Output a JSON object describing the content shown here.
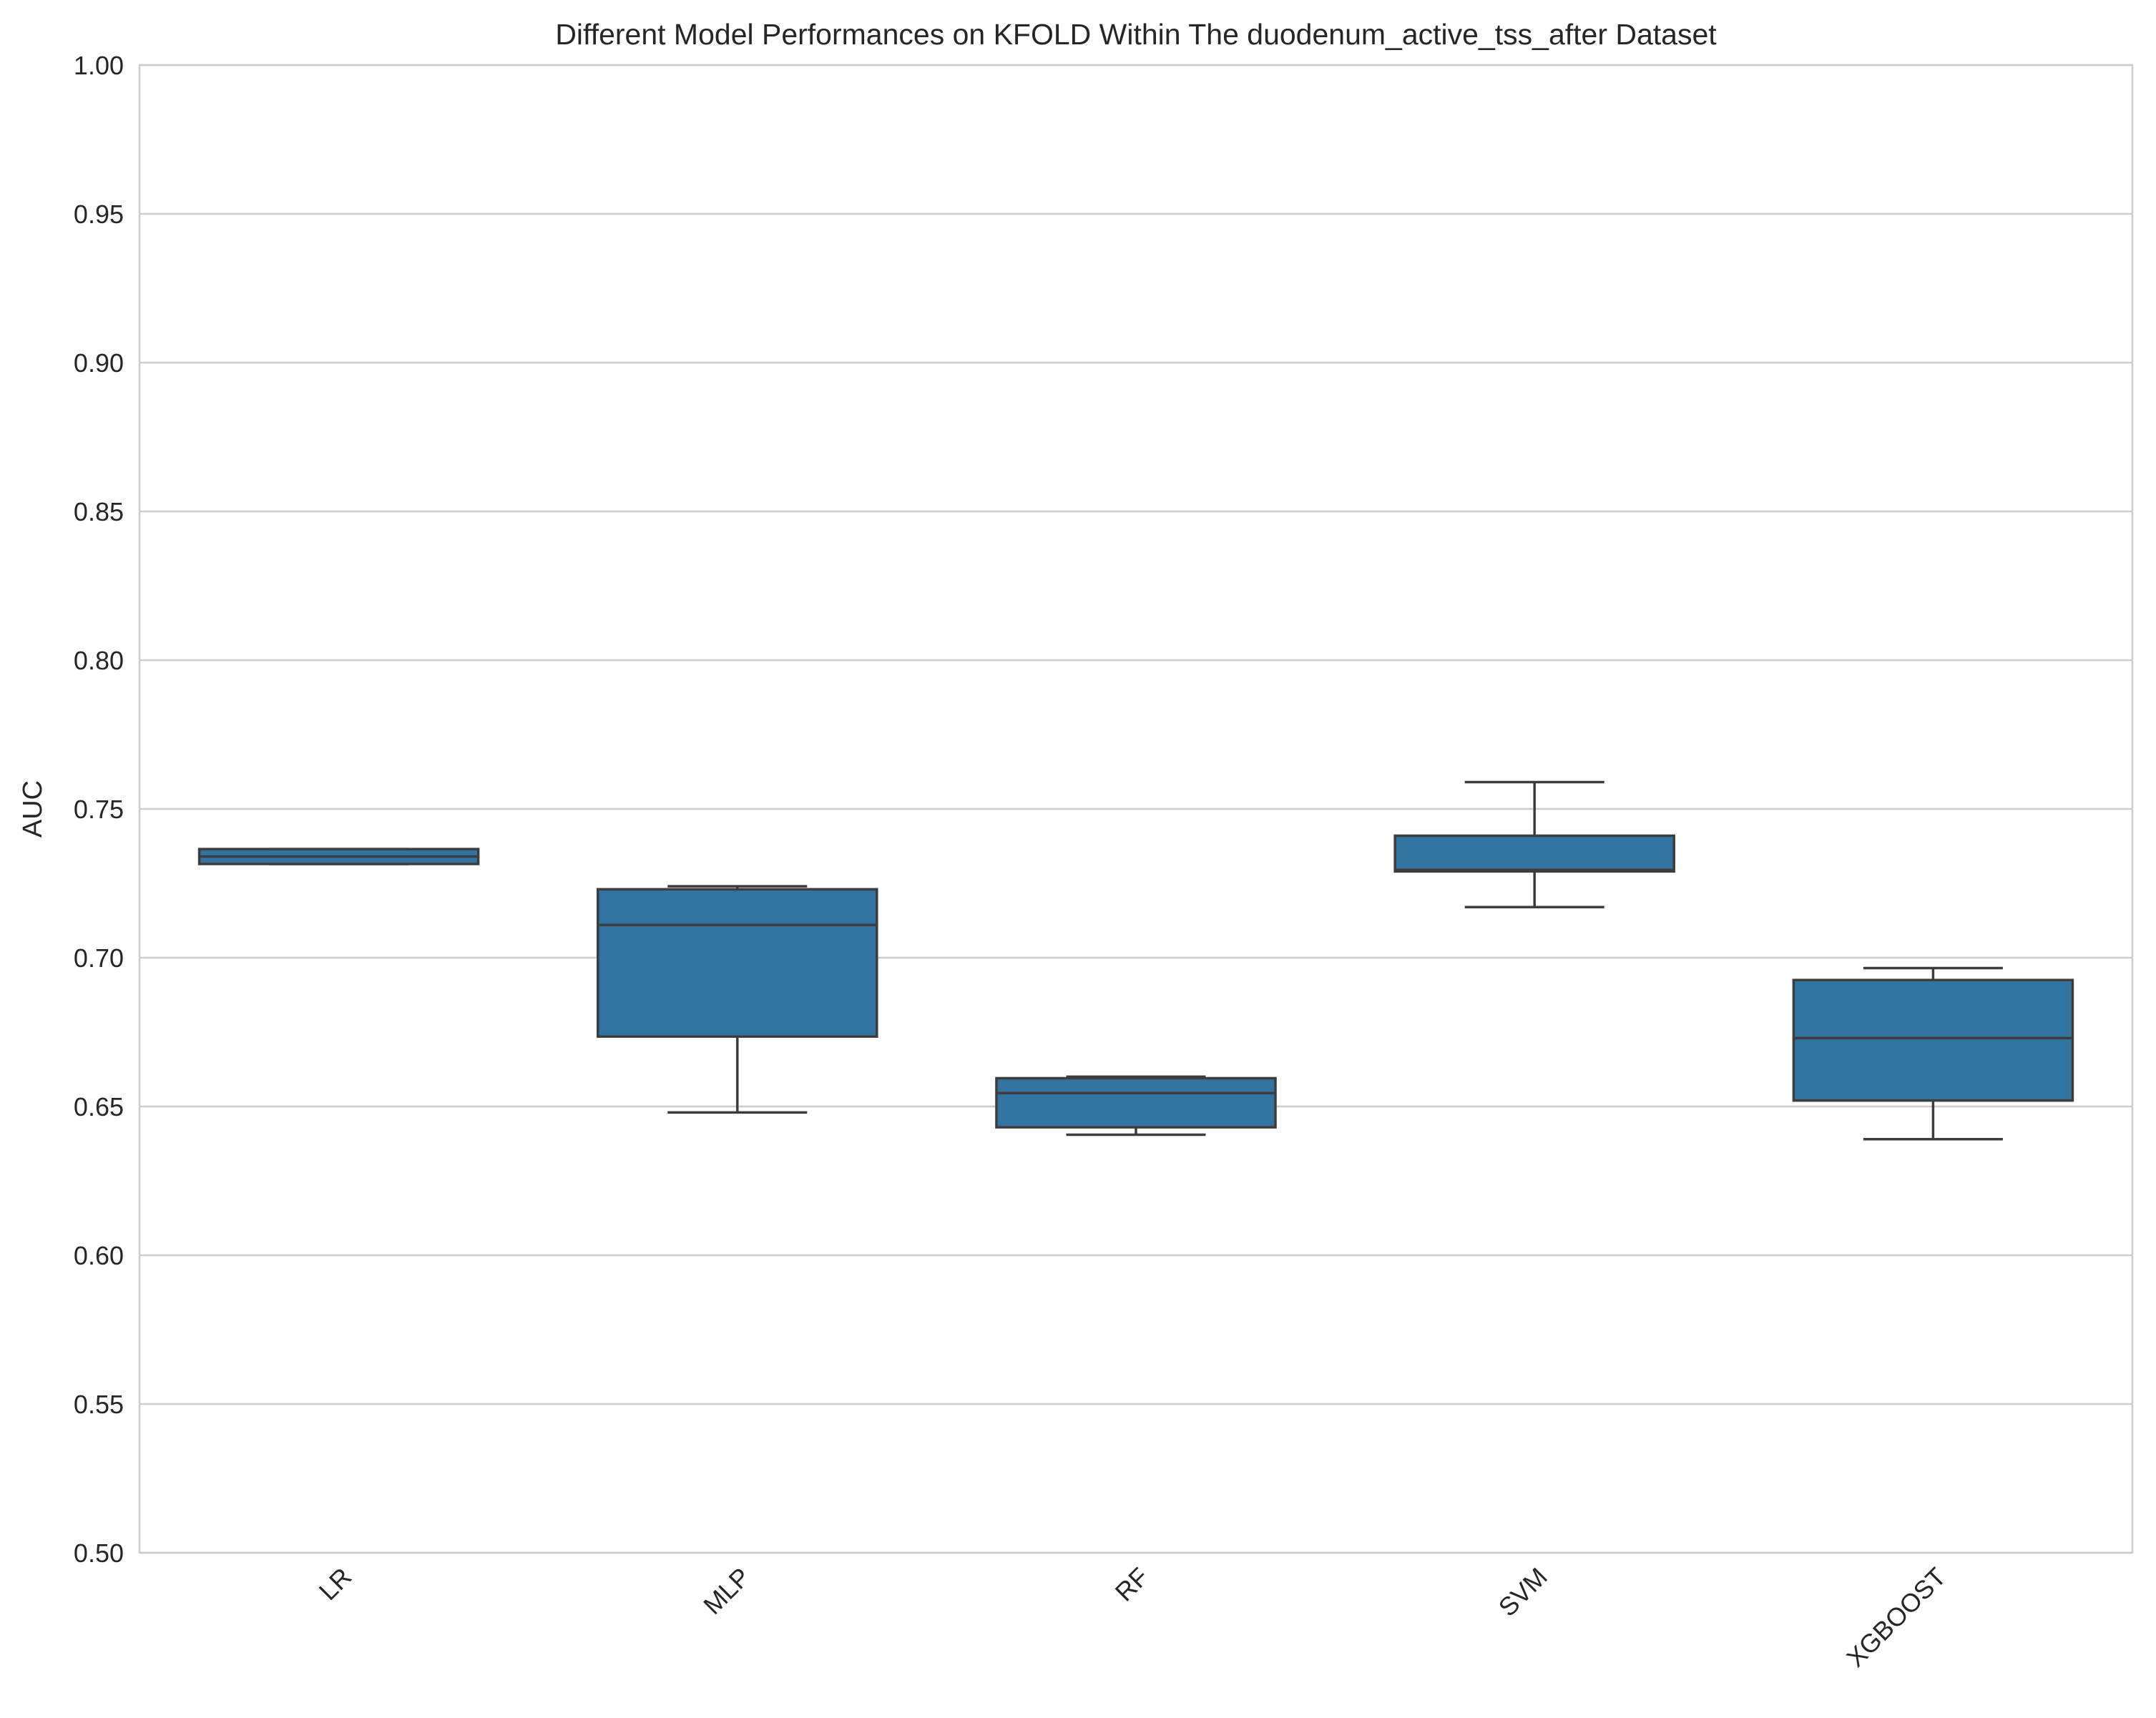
{
  "chart_data": {
    "type": "box",
    "title": "Different Model Performances on KFOLD Within The duodenum_active_tss_after Dataset",
    "xlabel": "",
    "ylabel": "AUC",
    "ylim": [
      0.5,
      1.0
    ],
    "yticks": [
      "0.50",
      "0.55",
      "0.60",
      "0.65",
      "0.70",
      "0.75",
      "0.80",
      "0.85",
      "0.90",
      "0.95",
      "1.00"
    ],
    "grid": true,
    "categories": [
      "LR",
      "MLP",
      "RF",
      "SVM",
      "XGBOOST"
    ],
    "boxes": [
      {
        "category": "LR",
        "whisker_low": 0.7315,
        "q1": 0.7315,
        "median": 0.734,
        "q3": 0.7365,
        "whisker_high": 0.7365
      },
      {
        "category": "MLP",
        "whisker_low": 0.648,
        "q1": 0.6735,
        "median": 0.711,
        "q3": 0.723,
        "whisker_high": 0.724
      },
      {
        "category": "RF",
        "whisker_low": 0.6405,
        "q1": 0.643,
        "median": 0.6545,
        "q3": 0.6595,
        "whisker_high": 0.66
      },
      {
        "category": "SVM",
        "whisker_low": 0.717,
        "q1": 0.729,
        "median": 0.7295,
        "q3": 0.741,
        "whisker_high": 0.759
      },
      {
        "category": "XGBOOST",
        "whisker_low": 0.639,
        "q1": 0.652,
        "median": 0.673,
        "q3": 0.6925,
        "whisker_high": 0.6965
      }
    ],
    "colors": {
      "box_fill": "#3274a1",
      "box_edge": "#3d3d3d",
      "grid": "#cccccc",
      "axes_edge": "#cccccc"
    }
  }
}
